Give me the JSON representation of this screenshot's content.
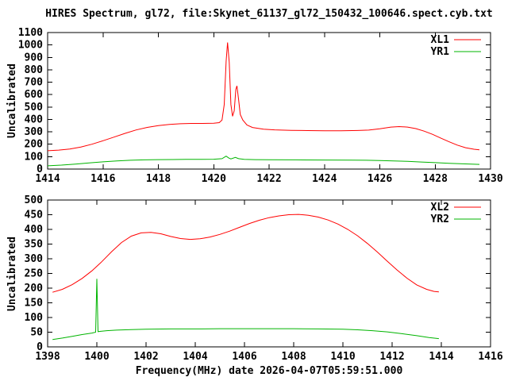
{
  "page": {
    "title": "HIRES Spectrum, gl72, file:Skynet_61137_gl72_150432_100646.spect.cyb.txt"
  },
  "colors": {
    "background": "#ffffff",
    "axis": "#000000",
    "text": "#000000",
    "xl_series": "#ff0000",
    "yr_series": "#00b400"
  },
  "chart_data": [
    {
      "type": "line",
      "title": "",
      "xlabel": "",
      "ylabel": "Uncalibrated",
      "xlim": [
        1414,
        1430
      ],
      "ylim": [
        0,
        1100
      ],
      "x_ticks": [
        1414,
        1416,
        1418,
        1420,
        1422,
        1424,
        1426,
        1428,
        1430
      ],
      "y_ticks": [
        0,
        100,
        200,
        300,
        400,
        500,
        600,
        700,
        800,
        900,
        1000,
        1100
      ],
      "grid": false,
      "legend_position": "top-right",
      "series": [
        {
          "name": "XL1",
          "color": "#ff0000",
          "points": [
            [
              1414.0,
              148
            ],
            [
              1414.4,
              153
            ],
            [
              1414.8,
              162
            ],
            [
              1415.2,
              178
            ],
            [
              1415.6,
              200
            ],
            [
              1416.0,
              228
            ],
            [
              1416.4,
              258
            ],
            [
              1416.8,
              288
            ],
            [
              1417.2,
              315
            ],
            [
              1417.6,
              336
            ],
            [
              1418.0,
              350
            ],
            [
              1418.4,
              360
            ],
            [
              1418.8,
              365
            ],
            [
              1419.2,
              368
            ],
            [
              1419.6,
              368
            ],
            [
              1420.0,
              369
            ],
            [
              1420.2,
              374
            ],
            [
              1420.3,
              395
            ],
            [
              1420.38,
              520
            ],
            [
              1420.45,
              870
            ],
            [
              1420.5,
              1020
            ],
            [
              1420.56,
              860
            ],
            [
              1420.62,
              520
            ],
            [
              1420.68,
              425
            ],
            [
              1420.74,
              470
            ],
            [
              1420.8,
              640
            ],
            [
              1420.84,
              670
            ],
            [
              1420.9,
              560
            ],
            [
              1420.96,
              440
            ],
            [
              1421.05,
              395
            ],
            [
              1421.2,
              355
            ],
            [
              1421.4,
              335
            ],
            [
              1421.8,
              322
            ],
            [
              1422.2,
              316
            ],
            [
              1422.8,
              312
            ],
            [
              1423.4,
              310
            ],
            [
              1424.0,
              309
            ],
            [
              1424.6,
              309
            ],
            [
              1425.2,
              311
            ],
            [
              1425.6,
              314
            ],
            [
              1426.0,
              324
            ],
            [
              1426.4,
              338
            ],
            [
              1426.7,
              342
            ],
            [
              1427.0,
              338
            ],
            [
              1427.3,
              326
            ],
            [
              1427.6,
              306
            ],
            [
              1427.9,
              280
            ],
            [
              1428.2,
              250
            ],
            [
              1428.5,
              220
            ],
            [
              1428.8,
              193
            ],
            [
              1429.1,
              172
            ],
            [
              1429.4,
              160
            ],
            [
              1429.6,
              155
            ]
          ]
        },
        {
          "name": "YR1",
          "color": "#00b400",
          "points": [
            [
              1414.0,
              26
            ],
            [
              1414.5,
              32
            ],
            [
              1415.0,
              40
            ],
            [
              1415.5,
              50
            ],
            [
              1416.0,
              58
            ],
            [
              1416.5,
              66
            ],
            [
              1417.0,
              71
            ],
            [
              1417.5,
              74
            ],
            [
              1418.0,
              76
            ],
            [
              1418.5,
              77
            ],
            [
              1419.0,
              78
            ],
            [
              1419.5,
              78
            ],
            [
              1420.0,
              79
            ],
            [
              1420.3,
              84
            ],
            [
              1420.45,
              104
            ],
            [
              1420.55,
              88
            ],
            [
              1420.62,
              82
            ],
            [
              1420.78,
              94
            ],
            [
              1420.9,
              84
            ],
            [
              1421.1,
              78
            ],
            [
              1421.5,
              76
            ],
            [
              1422.0,
              75
            ],
            [
              1423.0,
              74
            ],
            [
              1424.0,
              73
            ],
            [
              1425.0,
              72
            ],
            [
              1425.5,
              71
            ],
            [
              1426.0,
              69
            ],
            [
              1426.5,
              66
            ],
            [
              1427.0,
              62
            ],
            [
              1427.5,
              57
            ],
            [
              1428.0,
              52
            ],
            [
              1428.5,
              46
            ],
            [
              1429.0,
              42
            ],
            [
              1429.6,
              38
            ]
          ]
        }
      ]
    },
    {
      "type": "line",
      "title": "",
      "xlabel": "Frequency(MHz) date 2026-04-07T05:59:51.000",
      "ylabel": "Uncalibrated",
      "xlim": [
        1398,
        1416
      ],
      "ylim": [
        0,
        500
      ],
      "x_ticks": [
        1398,
        1400,
        1402,
        1404,
        1406,
        1408,
        1410,
        1412,
        1414,
        1416
      ],
      "y_ticks": [
        0,
        50,
        100,
        150,
        200,
        250,
        300,
        350,
        400,
        450,
        500
      ],
      "grid": false,
      "legend_position": "top-right",
      "series": [
        {
          "name": "XL2",
          "color": "#ff0000",
          "points": [
            [
              1398.2,
              186
            ],
            [
              1398.6,
              196
            ],
            [
              1399.0,
              212
            ],
            [
              1399.4,
              233
            ],
            [
              1399.8,
              259
            ],
            [
              1400.2,
              290
            ],
            [
              1400.6,
              324
            ],
            [
              1401.0,
              355
            ],
            [
              1401.4,
              377
            ],
            [
              1401.8,
              388
            ],
            [
              1402.2,
              390
            ],
            [
              1402.6,
              385
            ],
            [
              1403.0,
              376
            ],
            [
              1403.4,
              369
            ],
            [
              1403.8,
              366
            ],
            [
              1404.2,
              368
            ],
            [
              1404.6,
              374
            ],
            [
              1405.0,
              383
            ],
            [
              1405.4,
              394
            ],
            [
              1405.8,
              407
            ],
            [
              1406.2,
              420
            ],
            [
              1406.6,
              431
            ],
            [
              1407.0,
              440
            ],
            [
              1407.4,
              446
            ],
            [
              1407.8,
              450
            ],
            [
              1408.2,
              451
            ],
            [
              1408.6,
              448
            ],
            [
              1409.0,
              442
            ],
            [
              1409.4,
              432
            ],
            [
              1409.8,
              418
            ],
            [
              1410.2,
              400
            ],
            [
              1410.6,
              378
            ],
            [
              1411.0,
              352
            ],
            [
              1411.4,
              323
            ],
            [
              1411.8,
              292
            ],
            [
              1412.2,
              262
            ],
            [
              1412.6,
              234
            ],
            [
              1413.0,
              211
            ],
            [
              1413.4,
              196
            ],
            [
              1413.7,
              189
            ],
            [
              1413.9,
              187
            ]
          ]
        },
        {
          "name": "YR2",
          "color": "#00b400",
          "points": [
            [
              1398.2,
              25
            ],
            [
              1398.6,
              30
            ],
            [
              1399.0,
              36
            ],
            [
              1399.4,
              42
            ],
            [
              1399.8,
              47
            ],
            [
              1399.95,
              50
            ],
            [
              1400.0,
              232
            ],
            [
              1400.05,
              52
            ],
            [
              1400.4,
              55
            ],
            [
              1400.8,
              57
            ],
            [
              1401.4,
              59
            ],
            [
              1402.0,
              60
            ],
            [
              1403.0,
              61
            ],
            [
              1404.0,
              61
            ],
            [
              1405.0,
              62
            ],
            [
              1406.0,
              62
            ],
            [
              1407.0,
              62
            ],
            [
              1408.0,
              62
            ],
            [
              1409.0,
              61
            ],
            [
              1410.0,
              60
            ],
            [
              1410.6,
              58
            ],
            [
              1411.2,
              55
            ],
            [
              1411.8,
              51
            ],
            [
              1412.4,
              45
            ],
            [
              1413.0,
              38
            ],
            [
              1413.5,
              32
            ],
            [
              1413.9,
              28
            ]
          ]
        }
      ]
    }
  ]
}
